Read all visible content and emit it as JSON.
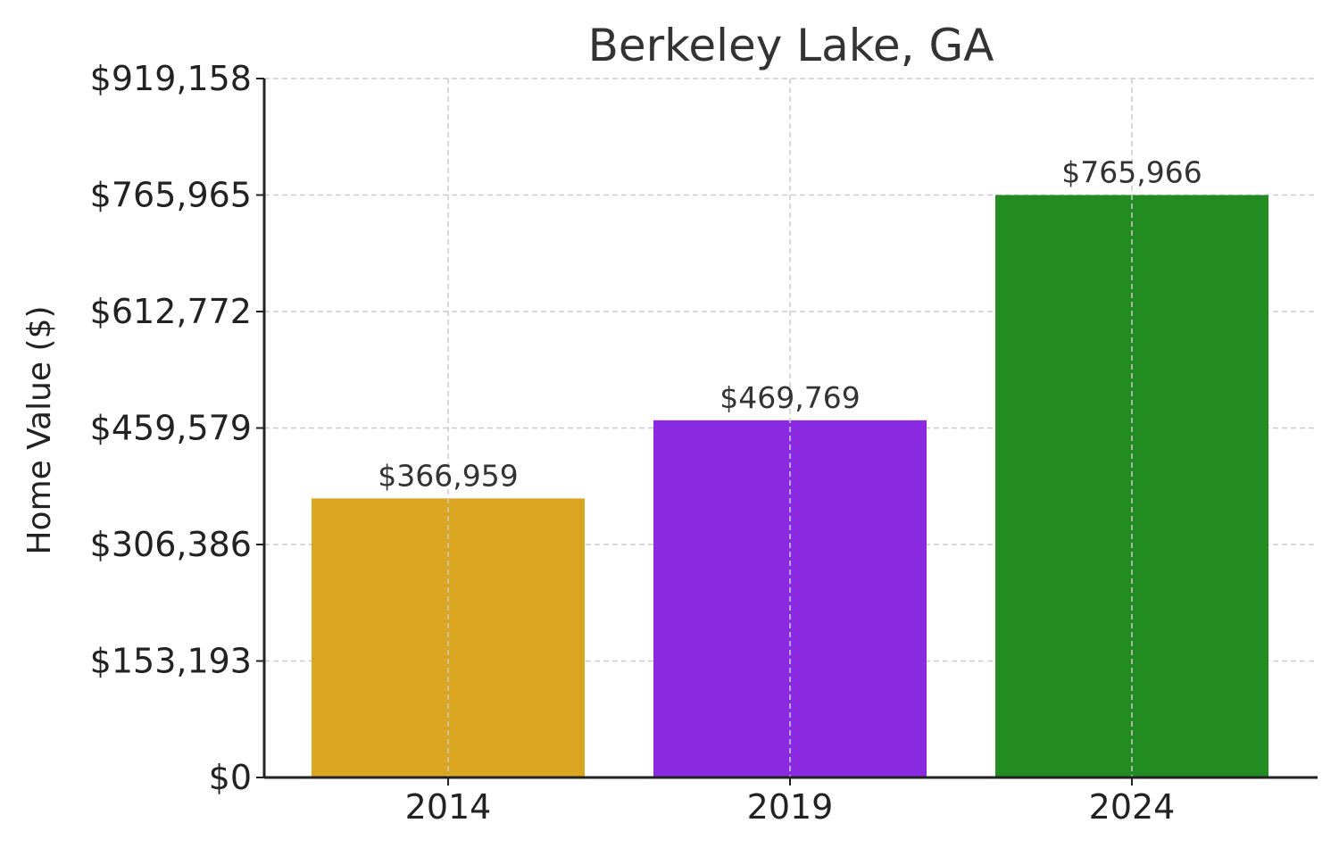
{
  "chart_data": {
    "type": "bar",
    "title": "Berkeley Lake, GA",
    "xlabel": "",
    "ylabel": "Home Value ($)",
    "categories": [
      "2014",
      "2019",
      "2024"
    ],
    "values": [
      366959,
      469769,
      765966
    ],
    "value_labels": [
      "$366,959",
      "$469,769",
      "$765,966"
    ],
    "colors": [
      "#DAA520",
      "#8A2BE2",
      "#228B22"
    ],
    "ylim": [
      0,
      919158
    ],
    "yticks": [
      0,
      153193,
      306386,
      459579,
      612772,
      765965,
      919158
    ],
    "ytick_labels": [
      "$0",
      "$153,193",
      "$306,386",
      "$459,579",
      "$612,772",
      "$765,965",
      "$919,158"
    ],
    "grid": true
  }
}
